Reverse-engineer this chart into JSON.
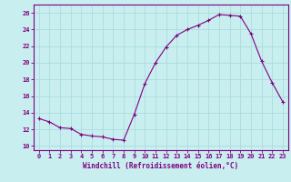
{
  "x": [
    0,
    1,
    2,
    3,
    4,
    5,
    6,
    7,
    8,
    9,
    10,
    11,
    12,
    13,
    14,
    15,
    16,
    17,
    18,
    19,
    20,
    21,
    22,
    23
  ],
  "y": [
    13.3,
    12.9,
    12.2,
    12.1,
    11.4,
    11.2,
    11.1,
    10.8,
    10.7,
    13.8,
    17.5,
    20.0,
    21.9,
    23.3,
    24.0,
    24.5,
    25.1,
    25.8,
    25.7,
    25.6,
    23.5,
    20.2,
    17.6,
    15.3
  ],
  "line_color": "#800080",
  "marker": "+",
  "marker_size": 3,
  "marker_color": "#800080",
  "bg_color": "#c8eef0",
  "grid_color": "#aadddd",
  "xlabel": "Windchill (Refroidissement éolien,°C)",
  "xlabel_color": "#800080",
  "yticks": [
    10,
    12,
    14,
    16,
    18,
    20,
    22,
    24,
    26
  ],
  "xticks": [
    0,
    1,
    2,
    3,
    4,
    5,
    6,
    7,
    8,
    9,
    10,
    11,
    12,
    13,
    14,
    15,
    16,
    17,
    18,
    19,
    20,
    21,
    22,
    23
  ],
  "xlim": [
    -0.5,
    23.5
  ],
  "ylim": [
    9.5,
    27.0
  ],
  "tick_color": "#800080",
  "axis_color": "#800080",
  "tick_fontsize": 5,
  "xlabel_fontsize": 5.5
}
